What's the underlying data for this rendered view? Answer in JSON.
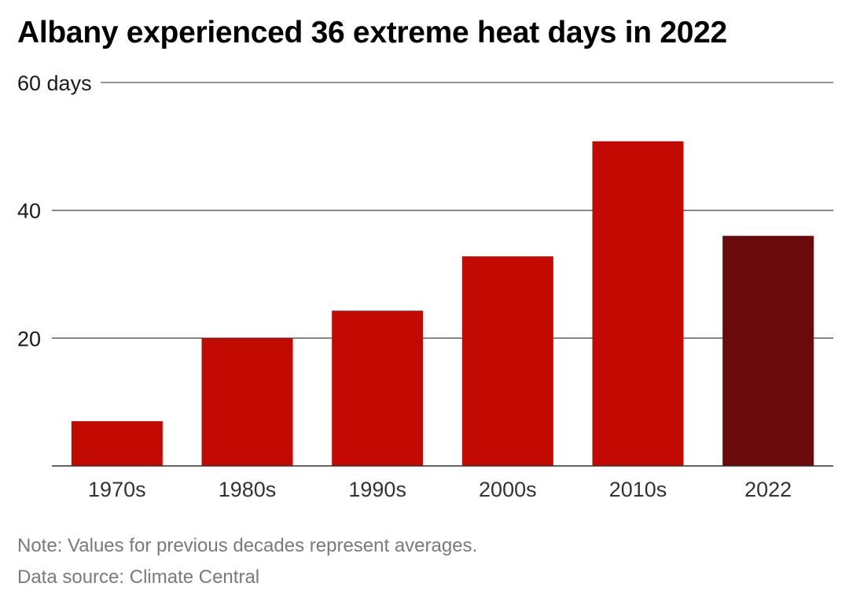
{
  "title": "Albany experienced 36 extreme heat days in 2022",
  "chart_data": {
    "type": "bar",
    "title": "Albany experienced 36 extreme heat days in 2022",
    "categories": [
      "1970s",
      "1980s",
      "1990s",
      "2000s",
      "2010s",
      "2022"
    ],
    "values": [
      7,
      20,
      24.3,
      32.8,
      50.8,
      36
    ],
    "bar_colors": [
      "#c20a02",
      "#c20a02",
      "#c20a02",
      "#c20a02",
      "#c20a02",
      "#6b0a0b"
    ],
    "ylim": [
      0,
      60
    ],
    "yticks": [
      {
        "value": 20,
        "label": "20"
      },
      {
        "value": 40,
        "label": "40"
      },
      {
        "value": 60,
        "label": "60 days"
      }
    ],
    "xlabel": "",
    "ylabel": "",
    "grid": true,
    "legend": "none"
  },
  "footer": {
    "note": "Note: Values for previous decades represent averages.",
    "source": "Data source: Climate Central"
  }
}
